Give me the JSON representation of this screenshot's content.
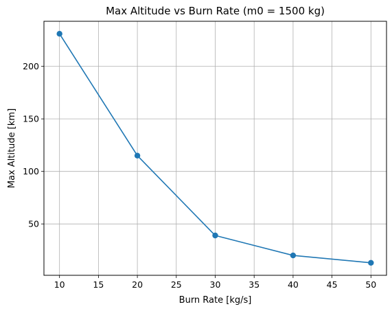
{
  "chart_data": {
    "type": "line",
    "title": "Max Altitude vs Burn Rate (m0 = 1500 kg)",
    "xlabel": "Burn Rate [kg/s]",
    "ylabel": "Max Altitude [km]",
    "x": [
      10,
      20,
      30,
      40,
      50
    ],
    "series": [
      {
        "values": [
          231,
          115,
          39,
          20,
          13
        ]
      }
    ],
    "xlim": [
      8,
      52
    ],
    "ylim": [
      1.1,
      242.9
    ],
    "xticks": [
      10,
      15,
      20,
      25,
      30,
      35,
      40,
      45,
      50
    ],
    "yticks": [
      50,
      100,
      150,
      200
    ],
    "grid": true,
    "line_color": "#1f77b4",
    "grid_color": "#b0b0b0",
    "marker": "circle"
  }
}
